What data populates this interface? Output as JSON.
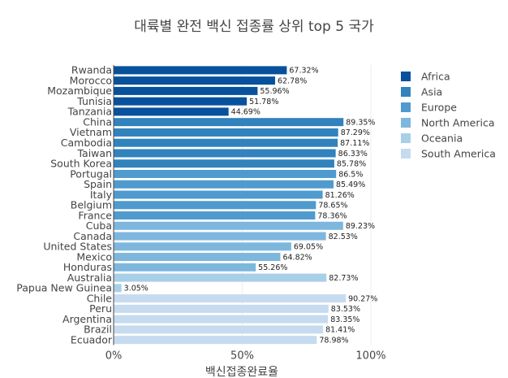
{
  "chart_data": {
    "type": "bar",
    "orientation": "horizontal",
    "title": "대륙별 완전 백신 접종률 상위 top 5 국가",
    "xlabel": "백신접종완료율",
    "ylabel": "",
    "xlim": [
      0,
      100
    ],
    "x_ticks": [
      {
        "value": 0,
        "label": "0%"
      },
      {
        "value": 50,
        "label": "50%"
      },
      {
        "value": 100,
        "label": "100%"
      }
    ],
    "legend_position": "right",
    "grid": true,
    "series": [
      {
        "name": "Africa",
        "color": "#08519c",
        "categories": [
          "Rwanda",
          "Morocco",
          "Mozambique",
          "Tunisia",
          "Tanzania"
        ],
        "values": [
          67.32,
          62.78,
          55.96,
          51.78,
          44.69
        ],
        "labels": [
          "67.32%",
          "62.78%",
          "55.96%",
          "51.78%",
          "44.69%"
        ]
      },
      {
        "name": "Asia",
        "color": "#3182bd",
        "categories": [
          "China",
          "Vietnam",
          "Cambodia",
          "Taiwan",
          "South Korea"
        ],
        "values": [
          89.35,
          87.29,
          87.11,
          86.33,
          85.78
        ],
        "labels": [
          "89.35%",
          "87.29%",
          "87.11%",
          "86.33%",
          "85.78%"
        ]
      },
      {
        "name": "Europe",
        "color": "#4f9ace",
        "categories": [
          "Portugal",
          "Spain",
          "Italy",
          "Belgium",
          "France"
        ],
        "values": [
          86.5,
          85.49,
          81.26,
          78.65,
          78.36
        ],
        "labels": [
          "86.5%",
          "85.49%",
          "81.26%",
          "78.65%",
          "78.36%"
        ]
      },
      {
        "name": "North America",
        "color": "#7db7de",
        "categories": [
          "Cuba",
          "Canada",
          "United States",
          "Mexico",
          "Honduras"
        ],
        "values": [
          89.23,
          82.53,
          69.05,
          64.82,
          55.26
        ],
        "labels": [
          "89.23%",
          "82.53%",
          "69.05%",
          "64.82%",
          "55.26%"
        ]
      },
      {
        "name": "Oceania",
        "color": "#a9cfe8",
        "categories": [
          "Australia",
          "Papua New Guinea"
        ],
        "values": [
          82.73,
          3.05
        ],
        "labels": [
          "82.73%",
          "3.05%"
        ]
      },
      {
        "name": "South America",
        "color": "#c6dbef",
        "categories": [
          "Chile",
          "Peru",
          "Argentina",
          "Brazil",
          "Ecuador"
        ],
        "values": [
          90.27,
          83.53,
          83.35,
          81.41,
          78.98
        ],
        "labels": [
          "90.27%",
          "83.53%",
          "83.35%",
          "81.41%",
          "78.98%"
        ]
      }
    ]
  }
}
